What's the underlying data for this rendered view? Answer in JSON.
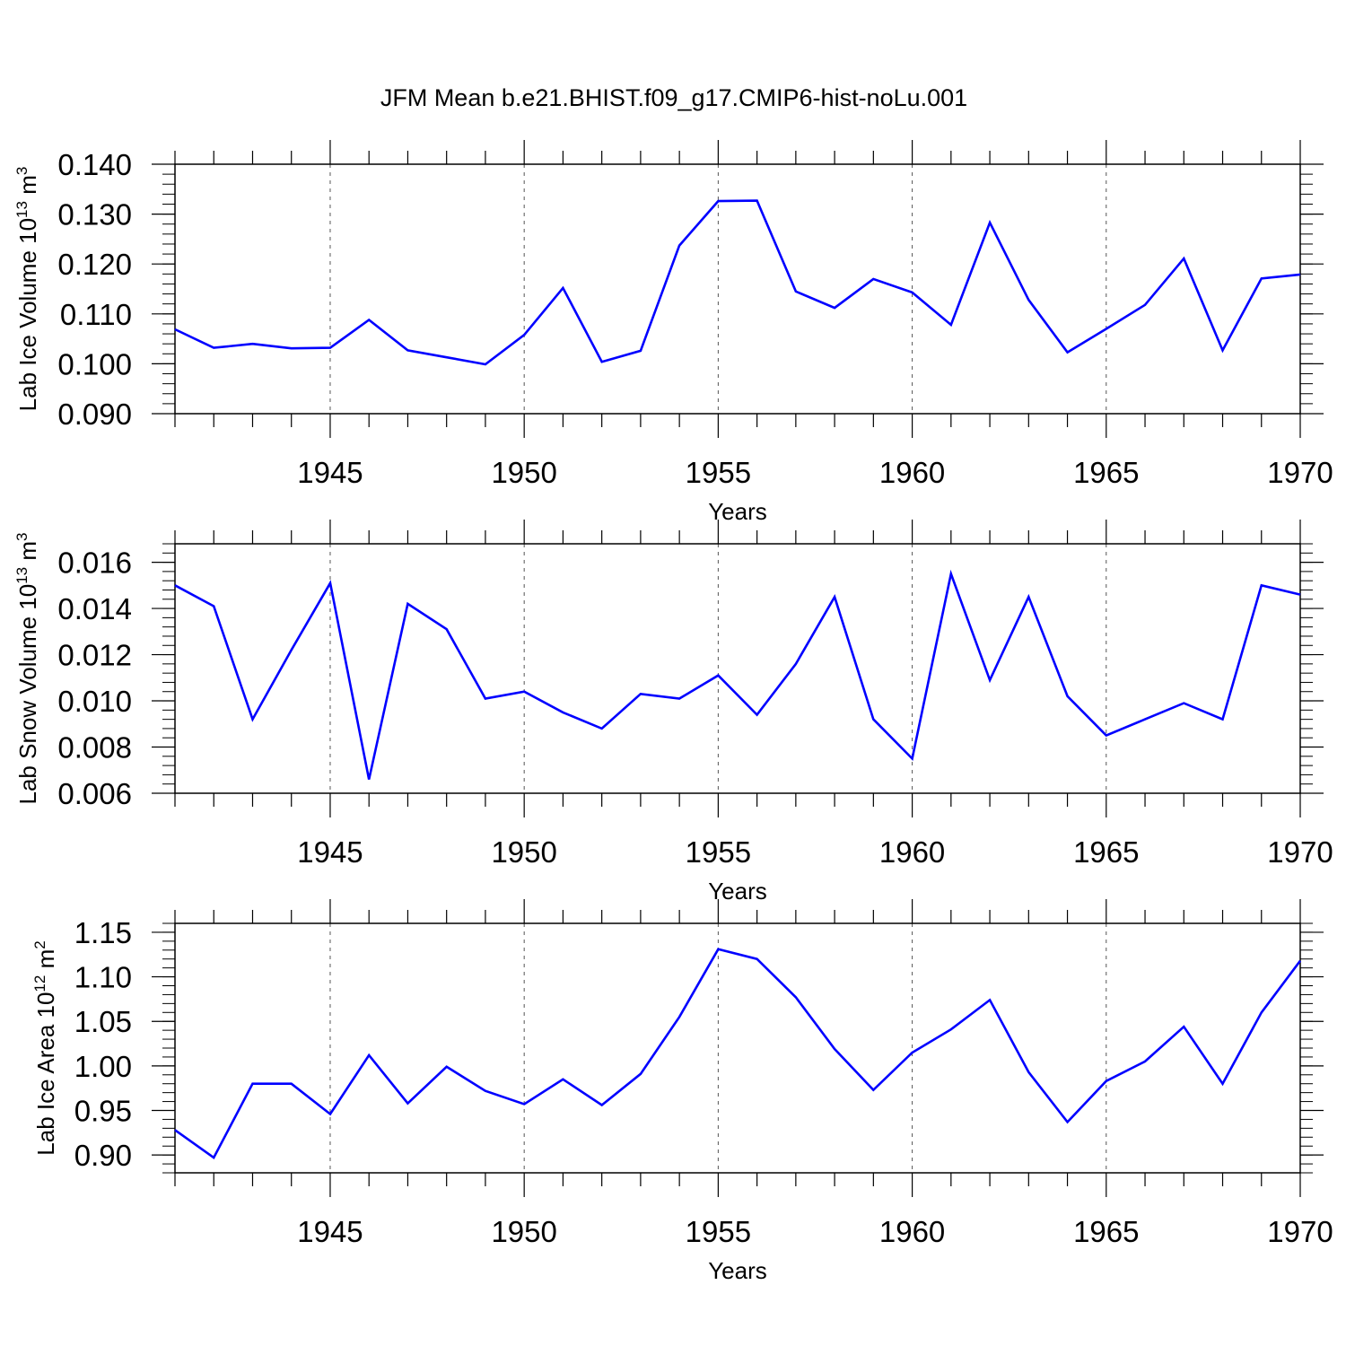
{
  "figure": {
    "title": "JFM Mean b.e21.BHIST.f09_g17.CMIP6-hist-noLu.001",
    "line_color": "#0000ff"
  },
  "chart_data": [
    {
      "type": "line",
      "xlabel": "Years",
      "ylabel": "Lab Ice Volume 10",
      "ylabel_exp": "13",
      "ylabel_unit": "m",
      "ylabel_unit_exp": "3",
      "xlim": [
        1941,
        1970
      ],
      "ylim": [
        0.09,
        0.14
      ],
      "x_ticks": [
        "1945",
        "1950",
        "1955",
        "1960",
        "1965",
        "1970"
      ],
      "y_ticks": [
        "0.140",
        "0.130",
        "0.120",
        "0.110",
        "0.100",
        "0.090"
      ],
      "y_tick_values": [
        0.14,
        0.13,
        0.12,
        0.11,
        0.1,
        0.09
      ],
      "grid": "dashed vertical lines at labeled years",
      "x": [
        1941,
        1942,
        1943,
        1944,
        1945,
        1946,
        1947,
        1948,
        1949,
        1950,
        1951,
        1952,
        1953,
        1954,
        1955,
        1956,
        1957,
        1958,
        1959,
        1960,
        1961,
        1962,
        1963,
        1964,
        1965,
        1966,
        1967,
        1968,
        1969,
        1970
      ],
      "values": [
        0.1069,
        0.1032,
        0.104,
        0.1031,
        0.1032,
        0.1088,
        0.1027,
        0.1013,
        0.0999,
        0.1058,
        0.1152,
        0.1004,
        0.1026,
        0.1237,
        0.1326,
        0.1327,
        0.1145,
        0.1112,
        0.117,
        0.1143,
        0.1078,
        0.1283,
        0.1128,
        0.1023,
        0.107,
        0.1118,
        0.1211,
        0.1027,
        0.1171,
        0.1179
      ]
    },
    {
      "type": "line",
      "xlabel": "Years",
      "ylabel": "Lab Snow Volume 10",
      "ylabel_exp": "13",
      "ylabel_unit": "m",
      "ylabel_unit_exp": "3",
      "xlim": [
        1941,
        1970
      ],
      "ylim": [
        0.006,
        0.0168
      ],
      "x_ticks": [
        "1945",
        "1950",
        "1955",
        "1960",
        "1965",
        "1970"
      ],
      "y_ticks": [
        "0.016",
        "0.014",
        "0.012",
        "0.010",
        "0.008",
        "0.006"
      ],
      "y_tick_values": [
        0.016,
        0.014,
        0.012,
        0.01,
        0.008,
        0.006
      ],
      "grid": "dashed vertical lines at labeled years",
      "x": [
        1941,
        1942,
        1943,
        1944,
        1945,
        1946,
        1947,
        1948,
        1949,
        1950,
        1951,
        1952,
        1953,
        1954,
        1955,
        1956,
        1957,
        1958,
        1959,
        1960,
        1961,
        1962,
        1963,
        1964,
        1965,
        1966,
        1967,
        1968,
        1969,
        1970
      ],
      "values": [
        0.015,
        0.0141,
        0.0092,
        0.0122,
        0.0151,
        0.0066,
        0.0142,
        0.0131,
        0.0101,
        0.0104,
        0.0095,
        0.0088,
        0.0103,
        0.0101,
        0.0111,
        0.0094,
        0.0116,
        0.0145,
        0.0092,
        0.0075,
        0.0155,
        0.0109,
        0.0145,
        0.0102,
        0.0085,
        0.0092,
        0.0099,
        0.0092,
        0.015,
        0.0146
      ]
    },
    {
      "type": "line",
      "xlabel": "Years",
      "ylabel": "Lab Ice Area 10",
      "ylabel_exp": "12",
      "ylabel_unit": "m",
      "ylabel_unit_exp": "2",
      "xlim": [
        1941,
        1970
      ],
      "ylim": [
        0.88,
        1.16
      ],
      "x_ticks": [
        "1945",
        "1950",
        "1955",
        "1960",
        "1965",
        "1970"
      ],
      "y_ticks": [
        "1.15",
        "1.10",
        "1.05",
        "1.00",
        "0.95",
        "0.90"
      ],
      "y_tick_values": [
        1.15,
        1.1,
        1.05,
        1.0,
        0.95,
        0.9
      ],
      "grid": "dashed vertical lines at labeled years",
      "x": [
        1941,
        1942,
        1943,
        1944,
        1945,
        1946,
        1947,
        1948,
        1949,
        1950,
        1951,
        1952,
        1953,
        1954,
        1955,
        1956,
        1957,
        1958,
        1959,
        1960,
        1961,
        1962,
        1963,
        1964,
        1965,
        1966,
        1967,
        1968,
        1969,
        1970
      ],
      "values": [
        0.928,
        0.897,
        0.98,
        0.98,
        0.946,
        1.012,
        0.958,
        0.999,
        0.972,
        0.957,
        0.985,
        0.956,
        0.991,
        1.055,
        1.131,
        1.12,
        1.077,
        1.019,
        0.973,
        1.015,
        1.041,
        1.074,
        0.993,
        0.937,
        0.983,
        1.005,
        1.044,
        0.98,
        1.06,
        1.118
      ]
    }
  ]
}
